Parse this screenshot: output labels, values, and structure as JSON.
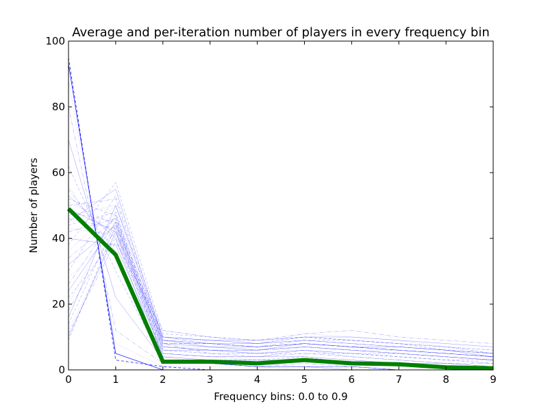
{
  "chart_data": {
    "type": "line",
    "title": "Average and per-iteration number of players in every frequency bin",
    "xlabel": "Frequency bins: 0.0 to 0.9",
    "ylabel": "Number of players",
    "xlim": [
      0,
      9
    ],
    "ylim": [
      0,
      100
    ],
    "x_ticks": [
      "0",
      "1",
      "2",
      "3",
      "4",
      "5",
      "6",
      "7",
      "8",
      "9"
    ],
    "y_ticks": [
      "0",
      "20",
      "40",
      "60",
      "80",
      "100"
    ],
    "grid": false,
    "legend": "none",
    "x": [
      0,
      1,
      2,
      3,
      4,
      5,
      6,
      7,
      8,
      9
    ],
    "average_series": {
      "color": "#007f00",
      "values": [
        49,
        35,
        2.5,
        2.5,
        2,
        3,
        2,
        1.7,
        0.8,
        0.5
      ]
    },
    "iteration_series": {
      "color": "#0000ff",
      "runs": [
        [
          93,
          5,
          0,
          0,
          0,
          0,
          0,
          0,
          0,
          0
        ],
        [
          95,
          3,
          1,
          0,
          0,
          0,
          0,
          0,
          0,
          0
        ],
        [
          88,
          8,
          1,
          1,
          1,
          0,
          0,
          0,
          0,
          0
        ],
        [
          80,
          12,
          2,
          2,
          1,
          1,
          1,
          0,
          0,
          0
        ],
        [
          70,
          22,
          3,
          2,
          1,
          1,
          0,
          0,
          0,
          0
        ],
        [
          62,
          30,
          3,
          2,
          1,
          1,
          1,
          0,
          0,
          0
        ],
        [
          56,
          34,
          4,
          2,
          2,
          1,
          1,
          0,
          0,
          0
        ],
        [
          55,
          36,
          3,
          2,
          1,
          2,
          1,
          0,
          0,
          0
        ],
        [
          53,
          40,
          2,
          2,
          1,
          1,
          1,
          0,
          0,
          0
        ],
        [
          52,
          47,
          3,
          3,
          3,
          4,
          2,
          2,
          1,
          1
        ],
        [
          51,
          44,
          5,
          4,
          3,
          3,
          3,
          2,
          1,
          1
        ],
        [
          50,
          52,
          8,
          5,
          4,
          6,
          4,
          3,
          2,
          1
        ],
        [
          49,
          42,
          4,
          3,
          3,
          3,
          2,
          2,
          1,
          1
        ],
        [
          48,
          45,
          6,
          5,
          5,
          6,
          5,
          4,
          3,
          2
        ],
        [
          47,
          50,
          7,
          6,
          5,
          7,
          6,
          5,
          4,
          3
        ],
        [
          46,
          43,
          5,
          4,
          4,
          5,
          4,
          3,
          2,
          2
        ],
        [
          45,
          55,
          9,
          7,
          6,
          8,
          7,
          6,
          5,
          4
        ],
        [
          44,
          48,
          6,
          6,
          5,
          5,
          5,
          4,
          3,
          3
        ],
        [
          43,
          41,
          4,
          3,
          2,
          3,
          2,
          1,
          1,
          0
        ],
        [
          42,
          46,
          10,
          8,
          7,
          9,
          8,
          7,
          6,
          5
        ],
        [
          40,
          38,
          5,
          4,
          4,
          4,
          3,
          2,
          2,
          1
        ],
        [
          38,
          57,
          11,
          10,
          9,
          10,
          9,
          8,
          6,
          5
        ],
        [
          36,
          50,
          12,
          10,
          8,
          11,
          10,
          9,
          7,
          5
        ],
        [
          34,
          46,
          8,
          8,
          7,
          8,
          7,
          6,
          5,
          4
        ],
        [
          32,
          44,
          7,
          6,
          6,
          7,
          6,
          5,
          4,
          3
        ],
        [
          30,
          53,
          10,
          9,
          8,
          9,
          9,
          8,
          7,
          5
        ],
        [
          28,
          42,
          6,
          5,
          5,
          6,
          5,
          4,
          3,
          2
        ],
        [
          26,
          47,
          9,
          8,
          7,
          8,
          7,
          6,
          5,
          4
        ],
        [
          24,
          45,
          8,
          7,
          7,
          8,
          7,
          7,
          6,
          4
        ],
        [
          22,
          40,
          6,
          6,
          5,
          6,
          5,
          5,
          4,
          3
        ],
        [
          20,
          48,
          9,
          9,
          8,
          10,
          9,
          8,
          7,
          6
        ],
        [
          18,
          43,
          7,
          6,
          6,
          7,
          6,
          5,
          4,
          3
        ],
        [
          16,
          50,
          10,
          9,
          9,
          10,
          10,
          9,
          8,
          7
        ],
        [
          14,
          45,
          8,
          8,
          7,
          8,
          7,
          6,
          5,
          4
        ],
        [
          12,
          41,
          7,
          7,
          6,
          7,
          6,
          6,
          5,
          4
        ],
        [
          11,
          39,
          12,
          10,
          9,
          11,
          12,
          10,
          9,
          8
        ],
        [
          10,
          42,
          9,
          8,
          8,
          9,
          8,
          7,
          6,
          5
        ],
        [
          9,
          44,
          10,
          9,
          8,
          10,
          9,
          8,
          7,
          6
        ]
      ]
    }
  }
}
